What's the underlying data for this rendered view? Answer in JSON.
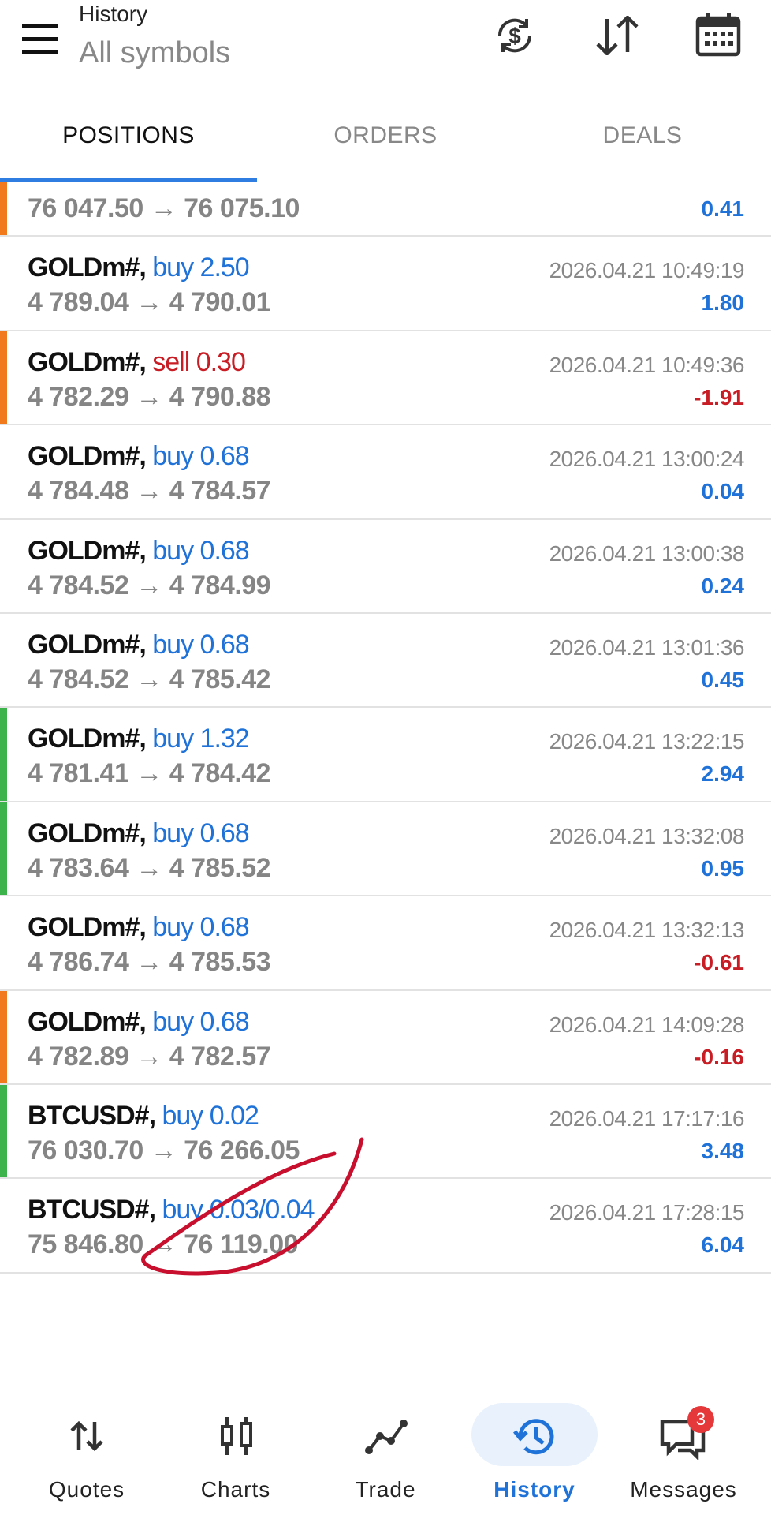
{
  "header": {
    "title": "History",
    "subtitle": "All symbols"
  },
  "tabs": [
    "POSITIONS",
    "ORDERS",
    "DEALS"
  ],
  "rows": [
    {
      "prices": "76 047.50 → 76 075.10",
      "profit": "0.41",
      "marker_color": "#f07a1c"
    },
    {
      "symbol": "GOLDm#,",
      "side": "buy 2.50",
      "time": "2026.04.21 10:49:19",
      "prices": "4 789.04 → 4 790.01",
      "profit": "1.80"
    },
    {
      "symbol": "GOLDm#,",
      "side": "sell 0.30",
      "time": "2026.04.21 10:49:36",
      "prices": "4 782.29 → 4 790.88",
      "profit": "-1.91",
      "marker_color": "#f07a1c"
    },
    {
      "symbol": "GOLDm#,",
      "side": "buy 0.68",
      "time": "2026.04.21 13:00:24",
      "prices": "4 784.48 → 4 784.57",
      "profit": "0.04"
    },
    {
      "symbol": "GOLDm#,",
      "side": "buy 0.68",
      "time": "2026.04.21 13:00:38",
      "prices": "4 784.52 → 4 784.99",
      "profit": "0.24"
    },
    {
      "symbol": "GOLDm#,",
      "side": "buy 0.68",
      "time": "2026.04.21 13:01:36",
      "prices": "4 784.52 → 4 785.42",
      "profit": "0.45"
    },
    {
      "symbol": "GOLDm#,",
      "side": "buy 1.32",
      "time": "2026.04.21 13:22:15",
      "prices": "4 781.41 → 4 784.42",
      "profit": "2.94",
      "marker_color": "#3cb44b"
    },
    {
      "symbol": "GOLDm#,",
      "side": "buy 0.68",
      "time": "2026.04.21 13:32:08",
      "prices": "4 783.64 → 4 785.52",
      "profit": "0.95",
      "marker_color": "#3cb44b"
    },
    {
      "symbol": "GOLDm#,",
      "side": "buy 0.68",
      "time": "2026.04.21 13:32:13",
      "prices": "4 786.74 → 4 785.53",
      "profit": "-0.61"
    },
    {
      "symbol": "GOLDm#,",
      "side": "buy 0.68",
      "time": "2026.04.21 14:09:28",
      "prices": "4 782.89 → 4 782.57",
      "profit": "-0.16",
      "marker_color": "#f07a1c"
    },
    {
      "symbol": "BTCUSD#,",
      "side": "buy 0.02",
      "time": "2026.04.21 17:17:16",
      "prices": "76 030.70 → 76 266.05",
      "profit": "3.48",
      "marker_color": "#3cb44b"
    },
    {
      "symbol": "BTCUSD#,",
      "side": "buy 0.03/0.04",
      "time": "2026.04.21 17:28:15",
      "prices": "75 846.80 → 76 119.00",
      "profit": "6.04"
    }
  ],
  "nav": {
    "items": [
      "Quotes",
      "Charts",
      "Trade",
      "History",
      "Messages"
    ],
    "badge": "3"
  }
}
